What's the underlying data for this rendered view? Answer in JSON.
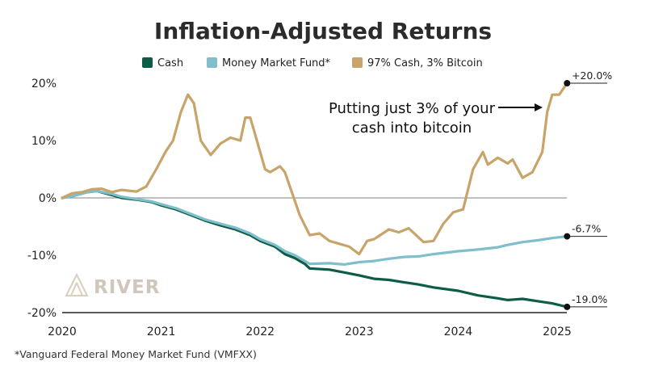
{
  "chart_data": {
    "type": "line",
    "title": "Inflation-Adjusted Returns",
    "xlim": [
      2020,
      2025.35
    ],
    "ylim": [
      -20,
      20
    ],
    "x_ticks": [
      "2020",
      "2021",
      "2022",
      "2023",
      "2024",
      "2025"
    ],
    "y_ticks": [
      "20%",
      "10%",
      "0%",
      "-10%",
      "-20%"
    ],
    "grid": false,
    "legend_position": "top-center",
    "series": [
      {
        "name": "Cash",
        "color": "#0d5c47",
        "end_label": "-19.0%",
        "points": [
          [
            2020,
            0
          ],
          [
            2020.1,
            0.3
          ],
          [
            2020.25,
            1
          ],
          [
            2020.35,
            1.2
          ],
          [
            2020.5,
            0.5
          ],
          [
            2020.6,
            0
          ],
          [
            2020.75,
            -0.3
          ],
          [
            2020.9,
            -0.7
          ],
          [
            2021,
            -1.3
          ],
          [
            2021.15,
            -2
          ],
          [
            2021.3,
            -3
          ],
          [
            2021.45,
            -4
          ],
          [
            2021.6,
            -4.8
          ],
          [
            2021.75,
            -5.5
          ],
          [
            2021.9,
            -6.5
          ],
          [
            2022,
            -7.5
          ],
          [
            2022.15,
            -8.5
          ],
          [
            2022.25,
            -9.8
          ],
          [
            2022.35,
            -10.5
          ],
          [
            2022.45,
            -11.5
          ],
          [
            2022.5,
            -12.3
          ],
          [
            2022.7,
            -12.5
          ],
          [
            2022.85,
            -13
          ],
          [
            2023,
            -13.5
          ],
          [
            2023.15,
            -14.1
          ],
          [
            2023.3,
            -14.3
          ],
          [
            2023.45,
            -14.7
          ],
          [
            2023.6,
            -15.1
          ],
          [
            2023.75,
            -15.6
          ],
          [
            2024,
            -16.2
          ],
          [
            2024.2,
            -17
          ],
          [
            2024.4,
            -17.5
          ],
          [
            2024.5,
            -17.8
          ],
          [
            2024.65,
            -17.6
          ],
          [
            2024.8,
            -18
          ],
          [
            2024.95,
            -18.4
          ],
          [
            2025.05,
            -18.8
          ],
          [
            2025.1,
            -19.0
          ]
        ]
      },
      {
        "name": "Money Market Fund*",
        "color": "#7fbfcc",
        "end_label": "-6.7%",
        "points": [
          [
            2020,
            0
          ],
          [
            2020.1,
            0.3
          ],
          [
            2020.25,
            1
          ],
          [
            2020.35,
            1.2
          ],
          [
            2020.5,
            0.7
          ],
          [
            2020.6,
            0.2
          ],
          [
            2020.75,
            -0.2
          ],
          [
            2020.9,
            -0.6
          ],
          [
            2021,
            -1.1
          ],
          [
            2021.15,
            -1.8
          ],
          [
            2021.3,
            -2.8
          ],
          [
            2021.45,
            -3.8
          ],
          [
            2021.6,
            -4.5
          ],
          [
            2021.75,
            -5.2
          ],
          [
            2021.9,
            -6.2
          ],
          [
            2022,
            -7.2
          ],
          [
            2022.15,
            -8.2
          ],
          [
            2022.25,
            -9.3
          ],
          [
            2022.35,
            -10
          ],
          [
            2022.45,
            -11
          ],
          [
            2022.5,
            -11.5
          ],
          [
            2022.7,
            -11.4
          ],
          [
            2022.85,
            -11.6
          ],
          [
            2023,
            -11.2
          ],
          [
            2023.15,
            -11
          ],
          [
            2023.3,
            -10.6
          ],
          [
            2023.45,
            -10.3
          ],
          [
            2023.6,
            -10.2
          ],
          [
            2023.75,
            -9.8
          ],
          [
            2024,
            -9.3
          ],
          [
            2024.2,
            -9
          ],
          [
            2024.4,
            -8.6
          ],
          [
            2024.5,
            -8.2
          ],
          [
            2024.65,
            -7.7
          ],
          [
            2024.8,
            -7.4
          ],
          [
            2024.95,
            -7
          ],
          [
            2025.05,
            -6.8
          ],
          [
            2025.1,
            -6.7
          ]
        ]
      },
      {
        "name": "97% Cash, 3% Bitcoin",
        "color": "#c8a46a",
        "end_label": "+20.0%",
        "points": [
          [
            2020,
            0
          ],
          [
            2020.1,
            0.8
          ],
          [
            2020.2,
            1
          ],
          [
            2020.3,
            1.5
          ],
          [
            2020.4,
            1.6
          ],
          [
            2020.5,
            1
          ],
          [
            2020.6,
            1.4
          ],
          [
            2020.75,
            1.1
          ],
          [
            2020.85,
            2
          ],
          [
            2020.95,
            5
          ],
          [
            2021.05,
            8.2
          ],
          [
            2021.12,
            10
          ],
          [
            2021.2,
            15
          ],
          [
            2021.27,
            18
          ],
          [
            2021.33,
            16.5
          ],
          [
            2021.4,
            10
          ],
          [
            2021.5,
            7.5
          ],
          [
            2021.6,
            9.5
          ],
          [
            2021.7,
            10.5
          ],
          [
            2021.8,
            10
          ],
          [
            2021.85,
            14
          ],
          [
            2021.9,
            14
          ],
          [
            2021.95,
            11
          ],
          [
            2022.05,
            5
          ],
          [
            2022.1,
            4.5
          ],
          [
            2022.2,
            5.5
          ],
          [
            2022.25,
            4.5
          ],
          [
            2022.4,
            -3
          ],
          [
            2022.5,
            -6.5
          ],
          [
            2022.6,
            -6.2
          ],
          [
            2022.7,
            -7.5
          ],
          [
            2022.8,
            -8
          ],
          [
            2022.9,
            -8.5
          ],
          [
            2023,
            -9.8
          ],
          [
            2023.08,
            -7.5
          ],
          [
            2023.15,
            -7.2
          ],
          [
            2023.3,
            -5.5
          ],
          [
            2023.4,
            -6
          ],
          [
            2023.5,
            -5.3
          ],
          [
            2023.65,
            -7.7
          ],
          [
            2023.75,
            -7.5
          ],
          [
            2023.85,
            -4.5
          ],
          [
            2023.95,
            -2.5
          ],
          [
            2024.05,
            -2
          ],
          [
            2024.15,
            5
          ],
          [
            2024.25,
            8
          ],
          [
            2024.3,
            5.8
          ],
          [
            2024.4,
            7
          ],
          [
            2024.5,
            6
          ],
          [
            2024.55,
            6.7
          ],
          [
            2024.65,
            3.5
          ],
          [
            2024.75,
            4.5
          ],
          [
            2024.85,
            8
          ],
          [
            2024.9,
            15
          ],
          [
            2024.95,
            18
          ],
          [
            2025.02,
            18
          ],
          [
            2025.1,
            20
          ]
        ]
      }
    ],
    "annotation": {
      "lines": [
        "Putting just 3% of your",
        "cash into bitcoin"
      ]
    }
  },
  "brand": "RIVER",
  "footnote": "*Vanguard Federal Money Market Fund (VMFXX)"
}
